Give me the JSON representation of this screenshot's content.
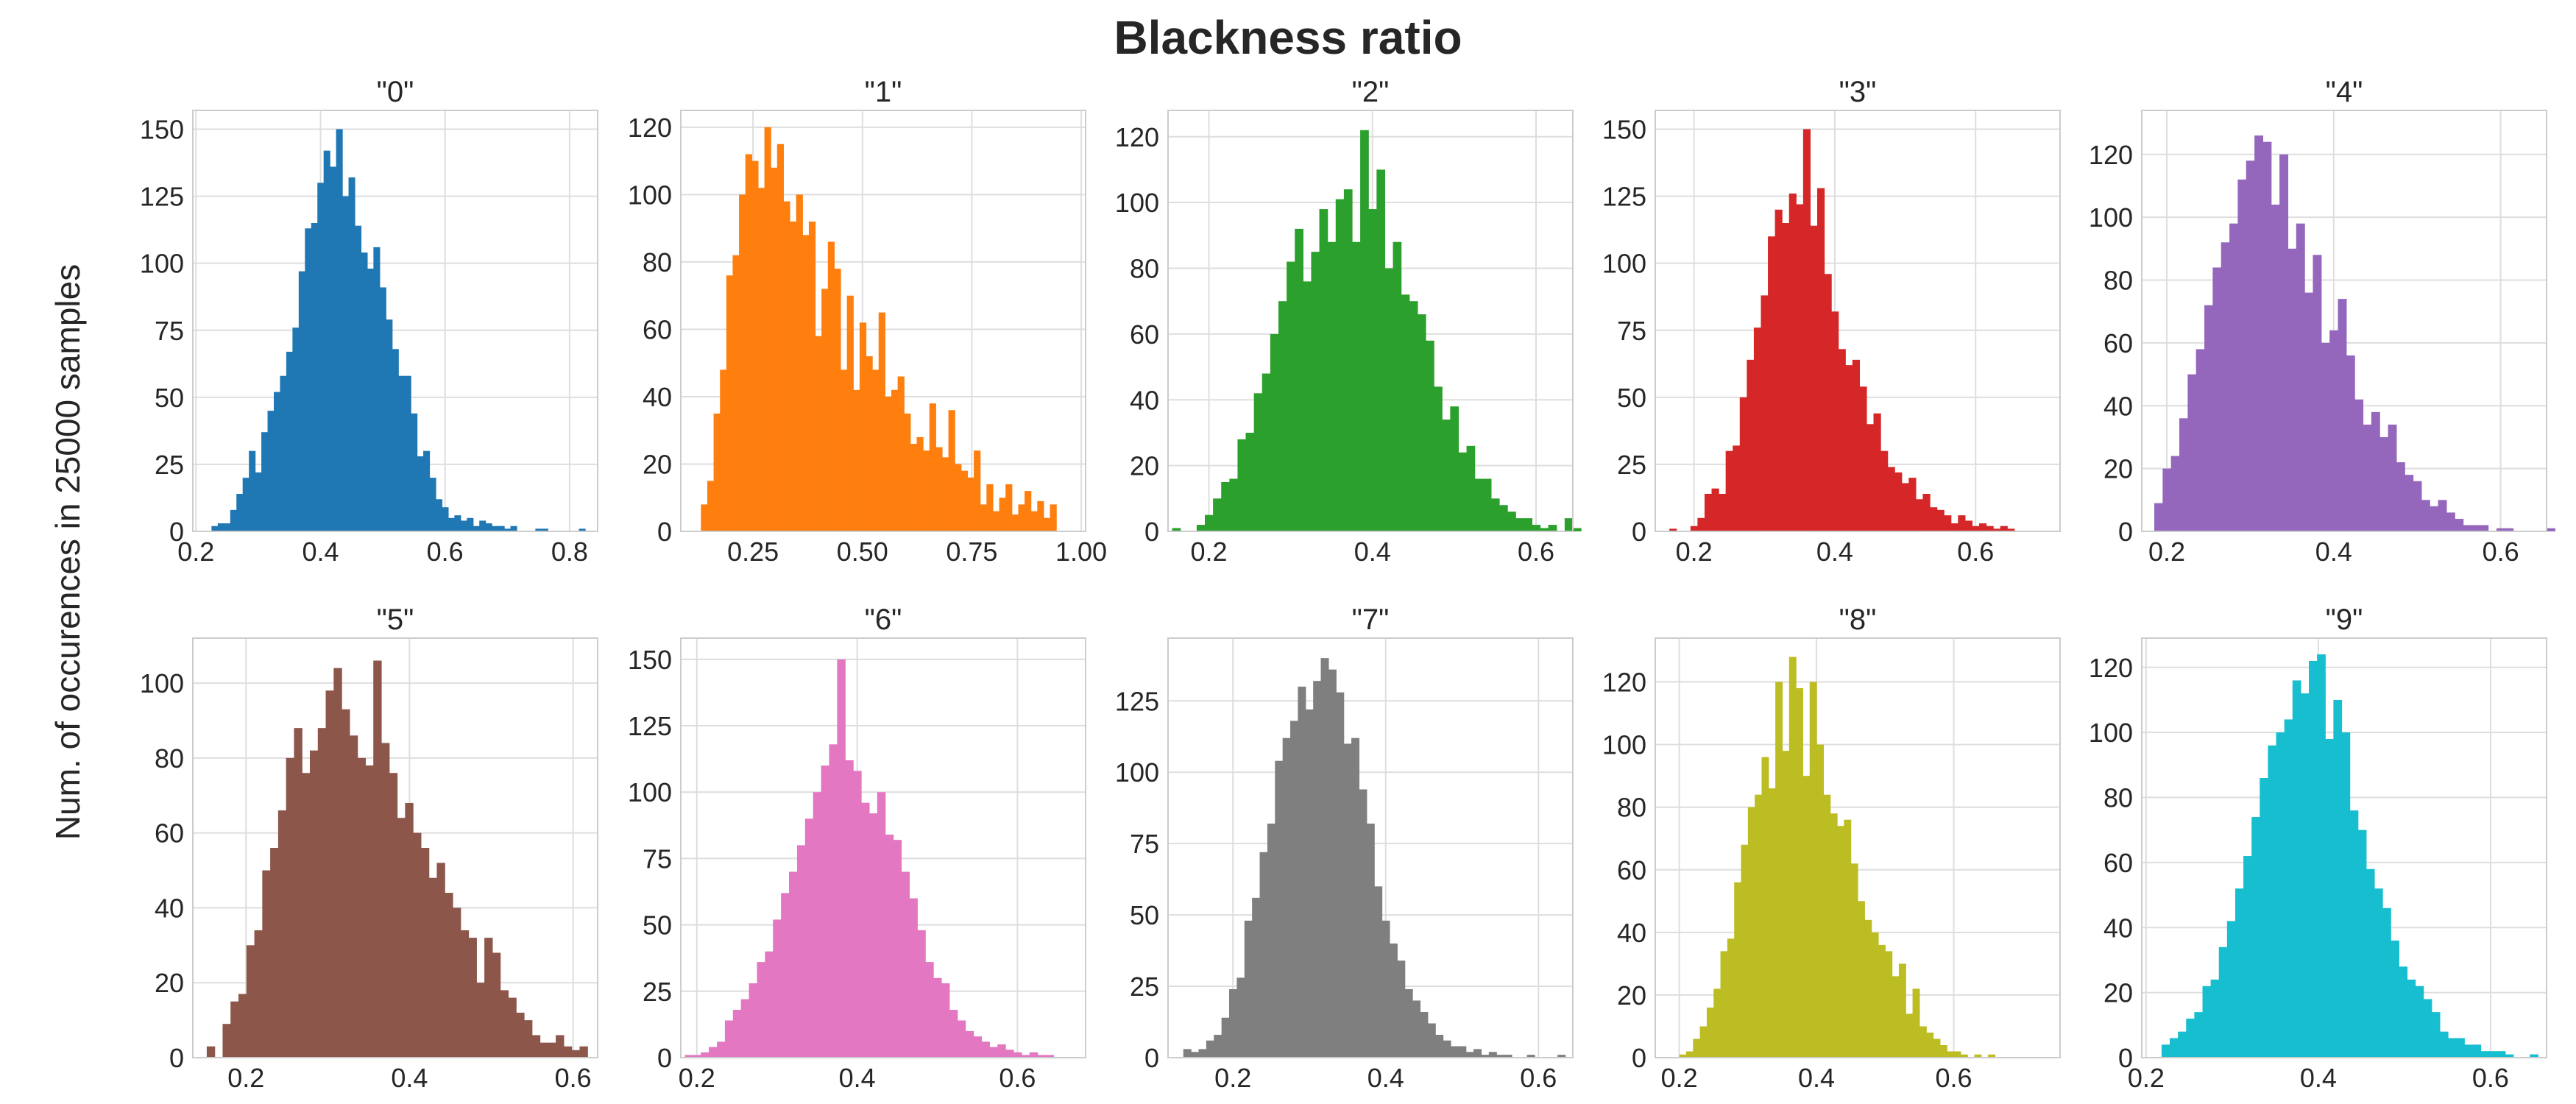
{
  "title": "Blackness ratio",
  "ylabel": "Num. of occurences in 25000 samples",
  "chart_data": [
    {
      "type": "bar",
      "title": "\"0\"",
      "color": "#1f77b4",
      "bin_width": 0.01,
      "x_start": 0.225,
      "xlim": [
        0.195,
        0.845
      ],
      "xticks": [
        0.2,
        0.4,
        0.6,
        0.8
      ],
      "xtick_labels": [
        "0.2",
        "0.4",
        "0.6",
        "0.8"
      ],
      "ylim": [
        0,
        157
      ],
      "yticks": [
        0,
        25,
        50,
        75,
        100,
        125,
        150
      ],
      "values": [
        2,
        3,
        3,
        8,
        14,
        20,
        30,
        22,
        37,
        45,
        52,
        58,
        67,
        76,
        97,
        113,
        115,
        130,
        142,
        136,
        150,
        125,
        132,
        114,
        104,
        98,
        106,
        91,
        79,
        68,
        58,
        58,
        44,
        28,
        30,
        20,
        12,
        9,
        5,
        6,
        4,
        5,
        2,
        4,
        3,
        2,
        2,
        1,
        2,
        0,
        0,
        0,
        1,
        1,
        0,
        0,
        0,
        0,
        0,
        1
      ]
    },
    {
      "type": "bar",
      "title": "\"1\"",
      "color": "#ff7f0e",
      "bin_width": 0.0145,
      "x_start": 0.131,
      "xlim": [
        0.085,
        1.01
      ],
      "xticks": [
        0.25,
        0.5,
        0.75,
        1.0
      ],
      "xtick_labels": [
        "0.25",
        "0.50",
        "0.75",
        "1.00"
      ],
      "ylim": [
        0,
        125
      ],
      "yticks": [
        0,
        20,
        40,
        60,
        80,
        100,
        120
      ],
      "values": [
        8,
        15,
        35,
        48,
        76,
        82,
        100,
        112,
        110,
        102,
        120,
        108,
        115,
        98,
        92,
        100,
        88,
        92,
        58,
        72,
        86,
        78,
        48,
        70,
        42,
        62,
        52,
        48,
        65,
        40,
        42,
        46,
        35,
        26,
        28,
        24,
        38,
        25,
        22,
        36,
        20,
        18,
        16,
        24,
        8,
        14,
        6,
        10,
        14,
        5,
        8,
        12,
        6,
        9,
        4,
        8
      ]
    },
    {
      "type": "bar",
      "title": "\"2\"",
      "color": "#2ca02c",
      "bin_width": 0.01,
      "x_start": 0.155,
      "xlim": [
        0.15,
        0.645
      ],
      "xticks": [
        0.2,
        0.4,
        0.6
      ],
      "xtick_labels": [
        "0.2",
        "0.4",
        "0.6"
      ],
      "ylim": [
        0,
        128
      ],
      "yticks": [
        0,
        20,
        40,
        60,
        80,
        100,
        120
      ],
      "values": [
        1,
        0,
        0,
        2,
        5,
        10,
        15,
        16,
        28,
        30,
        42,
        48,
        60,
        70,
        82,
        92,
        76,
        85,
        98,
        88,
        101,
        104,
        88,
        122,
        98,
        110,
        80,
        88,
        72,
        70,
        66,
        58,
        44,
        34,
        38,
        24,
        26,
        16,
        16,
        10,
        8,
        6,
        4,
        4,
        2,
        1,
        2,
        0,
        4,
        1
      ]
    },
    {
      "type": "bar",
      "title": "\"3\"",
      "color": "#d62728",
      "bin_width": 0.01,
      "x_start": 0.165,
      "xlim": [
        0.145,
        0.72
      ],
      "xticks": [
        0.2,
        0.4,
        0.6
      ],
      "xtick_labels": [
        "0.2",
        "0.4",
        "0.6"
      ],
      "ylim": [
        0,
        157
      ],
      "yticks": [
        0,
        25,
        50,
        75,
        100,
        125,
        150
      ],
      "values": [
        1,
        0,
        0,
        2,
        5,
        14,
        16,
        14,
        30,
        32,
        50,
        64,
        76,
        88,
        110,
        120,
        115,
        126,
        122,
        150,
        114,
        128,
        96,
        82,
        68,
        62,
        64,
        54,
        40,
        44,
        30,
        24,
        22,
        18,
        20,
        12,
        14,
        9,
        8,
        6,
        3,
        6,
        4,
        2,
        3,
        2,
        1,
        2,
        1
      ]
    },
    {
      "type": "bar",
      "title": "\"4\"",
      "color": "#9467bd",
      "bin_width": 0.01,
      "x_start": 0.185,
      "xlim": [
        0.17,
        0.655
      ],
      "xticks": [
        0.2,
        0.4,
        0.6
      ],
      "xtick_labels": [
        "0.2",
        "0.4",
        "0.6"
      ],
      "ylim": [
        0,
        134
      ],
      "yticks": [
        0,
        20,
        40,
        60,
        80,
        100,
        120
      ],
      "values": [
        9,
        20,
        24,
        36,
        50,
        58,
        72,
        84,
        92,
        98,
        112,
        118,
        126,
        124,
        104,
        120,
        90,
        98,
        76,
        88,
        60,
        64,
        74,
        56,
        42,
        34,
        38,
        30,
        34,
        22,
        18,
        16,
        10,
        8,
        10,
        6,
        4,
        2,
        2,
        2,
        0,
        1,
        1,
        0,
        0,
        0,
        0,
        1
      ]
    },
    {
      "type": "bar",
      "title": "\"5\"",
      "color": "#8c564b",
      "bin_width": 0.0097,
      "x_start": 0.152,
      "xlim": [
        0.135,
        0.63
      ],
      "xticks": [
        0.2,
        0.4,
        0.6
      ],
      "xtick_labels": [
        "0.2",
        "0.4",
        "0.6"
      ],
      "ylim": [
        0,
        112
      ],
      "yticks": [
        0,
        20,
        40,
        60,
        80,
        100
      ],
      "values": [
        3,
        0,
        9,
        15,
        17,
        30,
        34,
        50,
        56,
        66,
        80,
        88,
        76,
        82,
        88,
        98,
        104,
        93,
        86,
        80,
        78,
        106,
        84,
        76,
        64,
        68,
        60,
        56,
        48,
        52,
        44,
        40,
        34,
        32,
        20,
        32,
        28,
        18,
        16,
        12,
        10,
        6,
        4,
        4,
        6,
        3,
        2,
        3
      ]
    },
    {
      "type": "bar",
      "title": "\"6\"",
      "color": "#e377c2",
      "bin_width": 0.01,
      "x_start": 0.185,
      "xlim": [
        0.18,
        0.685
      ],
      "xticks": [
        0.2,
        0.4,
        0.6
      ],
      "xtick_labels": [
        "0.2",
        "0.4",
        "0.6"
      ],
      "ylim": [
        0,
        158
      ],
      "yticks": [
        0,
        25,
        50,
        75,
        100,
        125,
        150
      ],
      "values": [
        1,
        1,
        2,
        4,
        6,
        14,
        18,
        22,
        28,
        36,
        40,
        52,
        62,
        70,
        80,
        90,
        100,
        110,
        118,
        150,
        112,
        108,
        96,
        92,
        100,
        84,
        82,
        70,
        60,
        48,
        36,
        30,
        28,
        18,
        14,
        10,
        8,
        6,
        4,
        5,
        3,
        2,
        1,
        2,
        1,
        1
      ]
    },
    {
      "type": "bar",
      "title": "\"7\"",
      "color": "#7f7f7f",
      "bin_width": 0.01,
      "x_start": 0.135,
      "xlim": [
        0.115,
        0.645
      ],
      "xticks": [
        0.2,
        0.4,
        0.6
      ],
      "xtick_labels": [
        "0.2",
        "0.4",
        "0.6"
      ],
      "ylim": [
        0,
        147
      ],
      "yticks": [
        0,
        25,
        50,
        75,
        100,
        125
      ],
      "values": [
        3,
        2,
        3,
        6,
        8,
        14,
        24,
        28,
        48,
        56,
        72,
        82,
        104,
        112,
        118,
        130,
        122,
        132,
        140,
        136,
        128,
        110,
        112,
        94,
        82,
        60,
        48,
        40,
        34,
        24,
        20,
        16,
        12,
        8,
        6,
        4,
        4,
        2,
        3,
        1,
        2,
        1,
        1,
        0,
        0,
        1,
        0,
        0,
        0,
        1
      ]
    },
    {
      "type": "bar",
      "title": "\"8\"",
      "color": "#bcbd22",
      "bin_width": 0.01,
      "x_start": 0.2,
      "xlim": [
        0.165,
        0.755
      ],
      "xticks": [
        0.2,
        0.4,
        0.6
      ],
      "xtick_labels": [
        "0.2",
        "0.4",
        "0.6"
      ],
      "ylim": [
        0,
        134
      ],
      "yticks": [
        0,
        20,
        40,
        60,
        80,
        100,
        120
      ],
      "values": [
        1,
        2,
        6,
        10,
        16,
        22,
        34,
        38,
        56,
        68,
        80,
        84,
        96,
        86,
        120,
        98,
        128,
        118,
        90,
        120,
        100,
        84,
        78,
        74,
        76,
        62,
        50,
        44,
        40,
        36,
        34,
        26,
        30,
        14,
        22,
        10,
        8,
        6,
        4,
        2,
        2,
        1,
        0,
        1,
        0,
        1,
        0
      ]
    },
    {
      "type": "bar",
      "title": "\"9\"",
      "color": "#17becf",
      "bin_width": 0.0095,
      "x_start": 0.218,
      "xlim": [
        0.195,
        0.665
      ],
      "xticks": [
        0.2,
        0.4,
        0.6
      ],
      "xtick_labels": [
        "0.2",
        "0.4",
        "0.6"
      ],
      "ylim": [
        0,
        129
      ],
      "yticks": [
        0,
        20,
        40,
        60,
        80,
        100,
        120
      ],
      "values": [
        4,
        6,
        8,
        12,
        14,
        22,
        24,
        34,
        42,
        52,
        62,
        74,
        86,
        96,
        100,
        104,
        116,
        112,
        122,
        124,
        98,
        110,
        100,
        76,
        70,
        58,
        52,
        46,
        36,
        28,
        24,
        22,
        18,
        14,
        8,
        6,
        6,
        4,
        4,
        2,
        2,
        2,
        1,
        0,
        0,
        1
      ]
    }
  ]
}
